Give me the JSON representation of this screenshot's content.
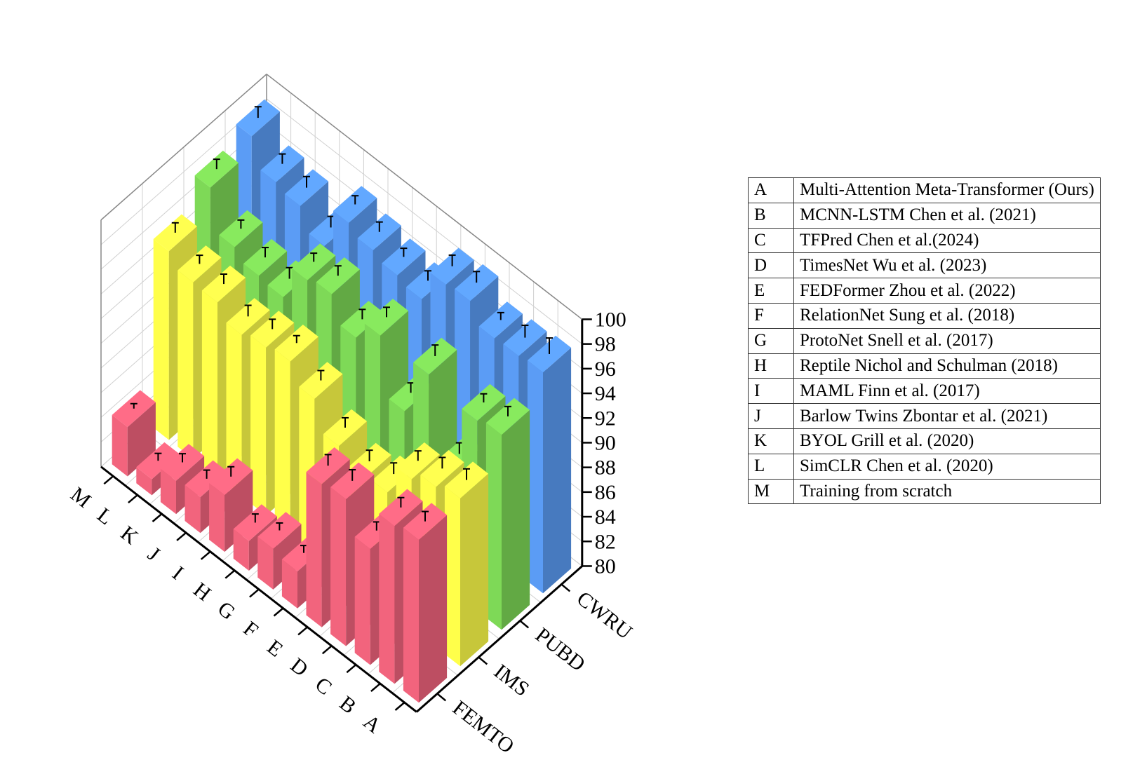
{
  "chart_data": {
    "type": "bar3d",
    "methods": [
      "A",
      "B",
      "C",
      "D",
      "E",
      "F",
      "G",
      "H",
      "I",
      "J",
      "K",
      "L",
      "M"
    ],
    "datasets": [
      "FEMTO",
      "IMS",
      "PUBD",
      "CWRU"
    ],
    "series": [
      {
        "name": "FEMTO",
        "color": "#F2647D",
        "values": [
          93.2,
          92.8,
          89.4,
          91.9,
          91.6,
          83.0,
          83.3,
          82.4,
          84.6,
          82.9,
          82.7,
          81.3,
          84.0
        ],
        "errors": [
          0.8,
          0.8,
          0.7,
          0.9,
          0.9,
          0.6,
          0.6,
          0.7,
          0.8,
          0.7,
          0.7,
          0.6,
          0.4
        ]
      },
      {
        "name": "IMS",
        "color": "#FFFF4A",
        "values": [
          93.6,
          93.0,
          92.1,
          89.5,
          89.0,
          90.2,
          92.5,
          94.0,
          93.6,
          93.1,
          94.2,
          94.3,
          95.3
        ],
        "errors": [
          0.9,
          0.9,
          0.8,
          0.9,
          0.9,
          0.8,
          0.8,
          0.6,
          0.8,
          0.9,
          0.8,
          0.7,
          0.8
        ]
      },
      {
        "name": "PUBD",
        "color": "#7ED957",
        "values": [
          95.8,
          95.4,
          89.7,
          96.1,
          91.6,
          96.2,
          94.5,
          96.5,
          96.1,
          93.2,
          93.4,
          94.2,
          97.5
        ],
        "errors": [
          0.8,
          0.7,
          0.9,
          0.9,
          0.8,
          0.8,
          0.8,
          0.8,
          0.7,
          0.9,
          0.8,
          0.7,
          0.8
        ]
      },
      {
        "name": "CWRU",
        "color": "#5B9CF5",
        "values": [
          97.9,
          97.7,
          97.6,
          99.1,
          98.9,
          96.2,
          96.6,
          97.1,
          97.8,
          94.4,
          96.1,
          96.5,
          98.7
        ],
        "errors": [
          1.3,
          1.0,
          0.6,
          0.9,
          0.9,
          0.8,
          0.7,
          0.8,
          0.7,
          0.9,
          0.9,
          0.8,
          0.9
        ]
      }
    ],
    "zlim": [
      80,
      100
    ],
    "zticks": [
      80,
      82,
      84,
      86,
      88,
      90,
      92,
      94,
      96,
      98,
      100
    ]
  },
  "legend": [
    {
      "key": "A",
      "label": "Multi-Attention Meta-Transformer (Ours)"
    },
    {
      "key": "B",
      "label": "MCNN-LSTM Chen et al. (2021)"
    },
    {
      "key": "C",
      "label": "TFPred Chen et al.(2024)"
    },
    {
      "key": "D",
      "label": "TimesNet Wu et al. (2023)"
    },
    {
      "key": "E",
      "label": "FEDFormer Zhou et al. (2022)"
    },
    {
      "key": "F",
      "label": "RelationNet Sung et al. (2018)"
    },
    {
      "key": "G",
      "label": "ProtoNet Snell et al. (2017)"
    },
    {
      "key": "H",
      "label": "Reptile Nichol and Schulman (2018)"
    },
    {
      "key": "I",
      "label": "MAML Finn et al. (2017)"
    },
    {
      "key": "J",
      "label": "Barlow Twins Zbontar et al. (2021)"
    },
    {
      "key": "K",
      "label": "BYOL Grill et al. (2020)"
    },
    {
      "key": "L",
      "label": "SimCLR Chen et al. (2020)"
    },
    {
      "key": "M",
      "label": "Training from scratch"
    }
  ]
}
